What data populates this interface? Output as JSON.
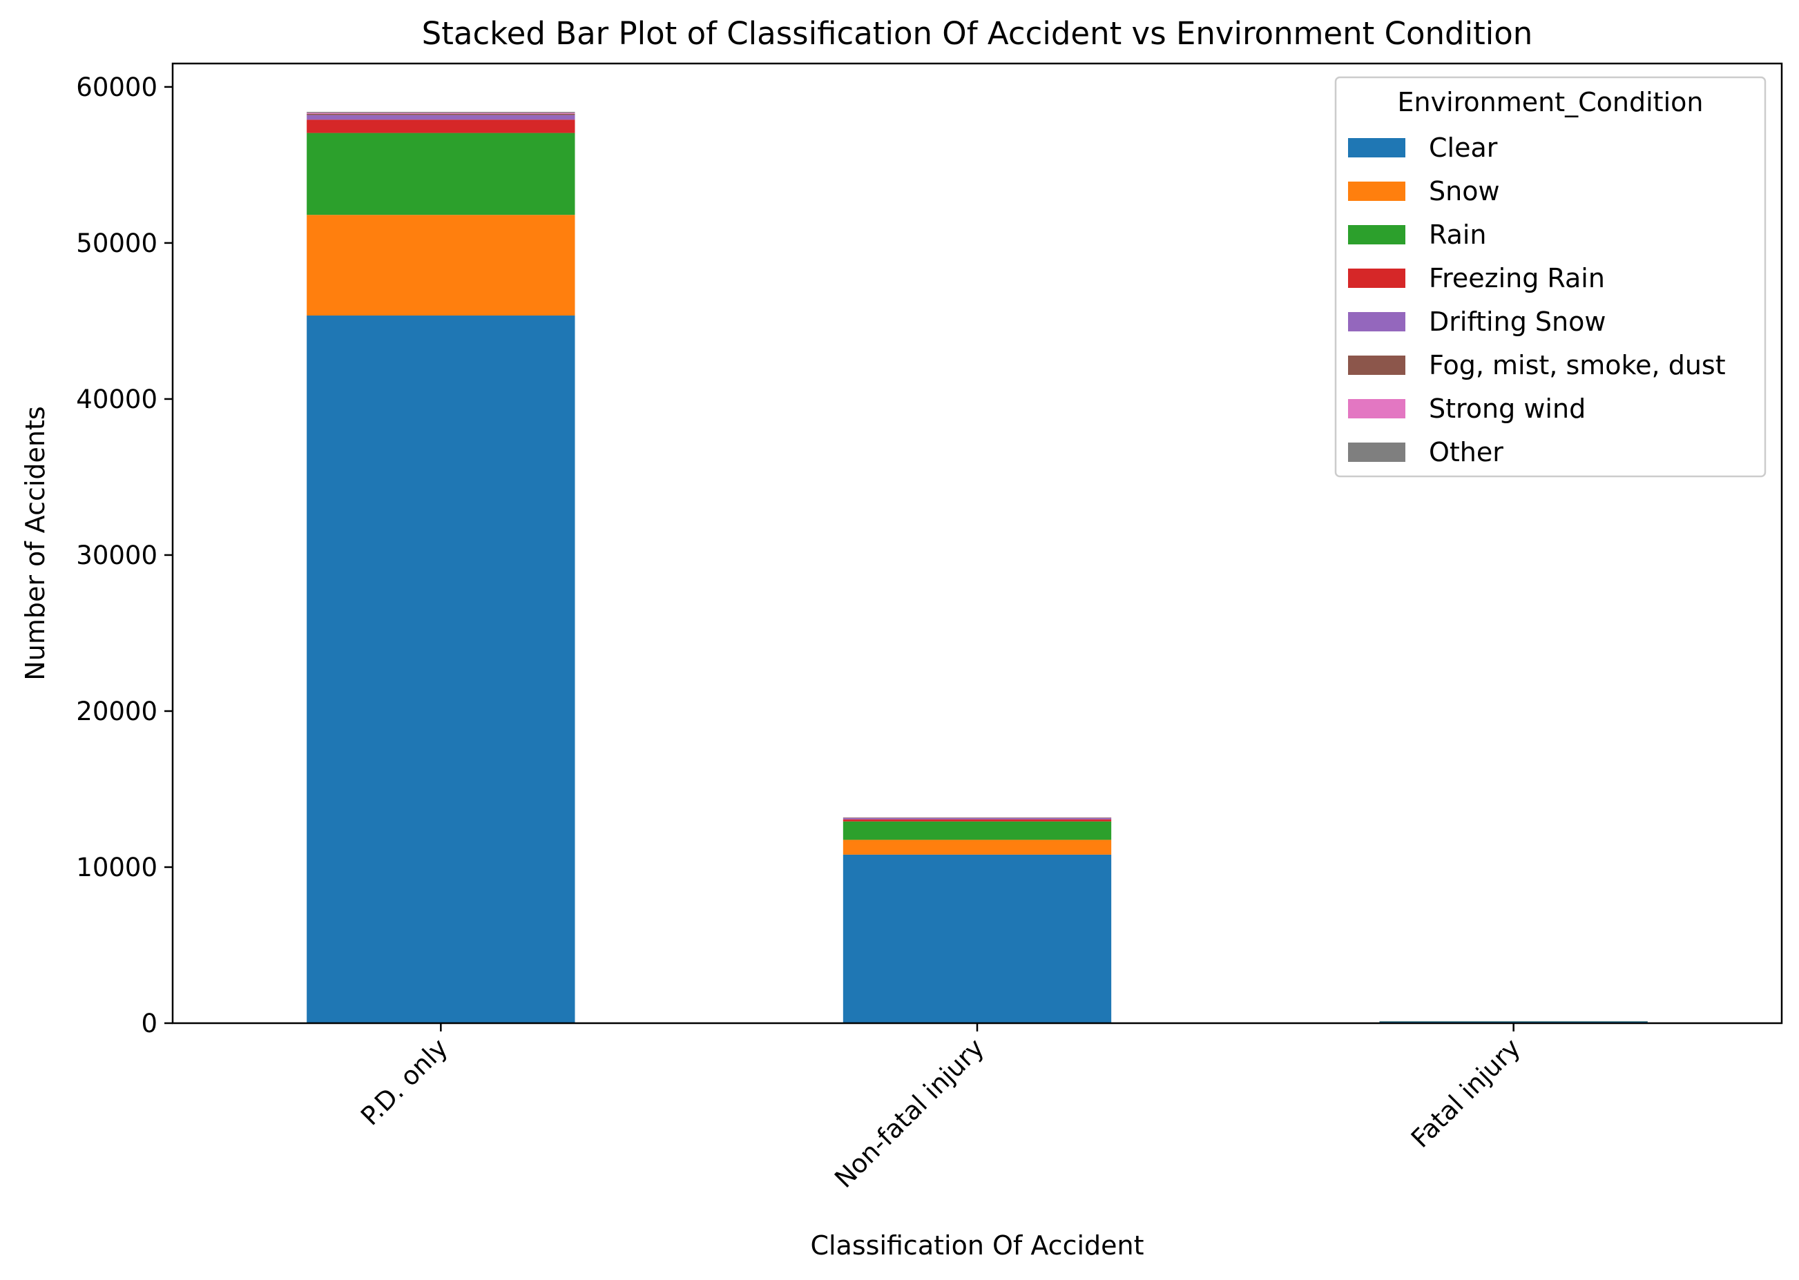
{
  "chart_data": {
    "type": "bar",
    "stacked": true,
    "title": "Stacked Bar Plot of Classification Of Accident vs Environment Condition",
    "xlabel": "Classification Of Accident",
    "ylabel": "Number of Accidents",
    "ylim": [
      0,
      61500
    ],
    "yticks": [
      0,
      10000,
      20000,
      30000,
      40000,
      50000,
      60000
    ],
    "ytick_labels": [
      "0",
      "10000",
      "20000",
      "30000",
      "40000",
      "50000",
      "60000"
    ],
    "grid": false,
    "legend": {
      "title": "Environment_Condition",
      "position": "top-right"
    },
    "categories": [
      "P.D. only",
      "Non-fatal injury",
      "Fatal injury"
    ],
    "series": [
      {
        "name": "Clear",
        "color": "#1f77b4",
        "values": [
          45350,
          10800,
          110
        ]
      },
      {
        "name": "Snow",
        "color": "#ff7f0e",
        "values": [
          6450,
          950,
          10
        ]
      },
      {
        "name": "Rain",
        "color": "#2ca02c",
        "values": [
          5250,
          1180,
          10
        ]
      },
      {
        "name": "Freezing Rain",
        "color": "#d62728",
        "values": [
          850,
          130,
          3
        ]
      },
      {
        "name": "Drifting Snow",
        "color": "#9467bd",
        "values": [
          300,
          80,
          1
        ]
      },
      {
        "name": "Fog, mist, smoke, dust",
        "color": "#8c564b",
        "values": [
          80,
          20,
          1
        ]
      },
      {
        "name": "Strong wind",
        "color": "#e377c2",
        "values": [
          60,
          15,
          0
        ]
      },
      {
        "name": "Other",
        "color": "#7f7f7f",
        "values": [
          60,
          15,
          0
        ]
      }
    ]
  }
}
